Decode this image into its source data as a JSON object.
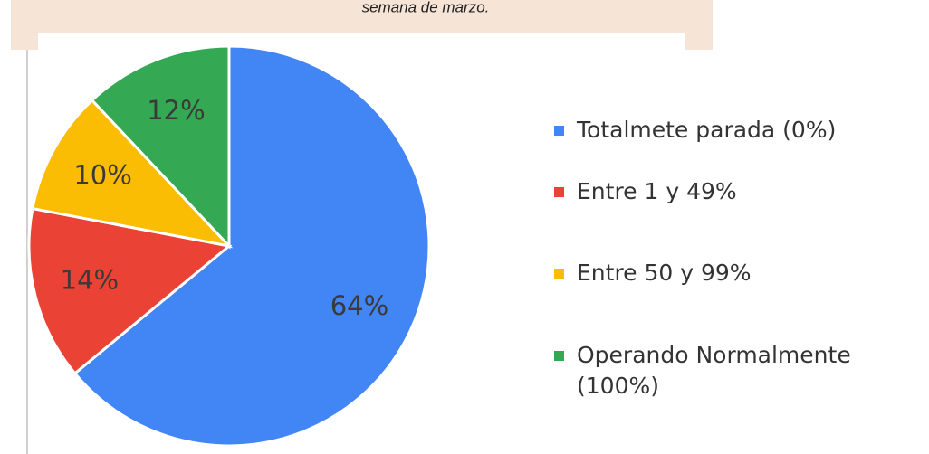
{
  "chart_data": {
    "type": "pie",
    "title": "semana de marzo.",
    "categories": [
      "Totalmete parada (0%)",
      "Entre 1 y 49%",
      "Entre 50 y 99%",
      "Operando Normalmente (100%)"
    ],
    "values": [
      64,
      14,
      10,
      12
    ],
    "value_labels": [
      "64%",
      "14%",
      "10%",
      "12%"
    ],
    "colors": [
      "#4285f4",
      "#ea4335",
      "#fbbc04",
      "#34a853"
    ],
    "legend": "right"
  }
}
